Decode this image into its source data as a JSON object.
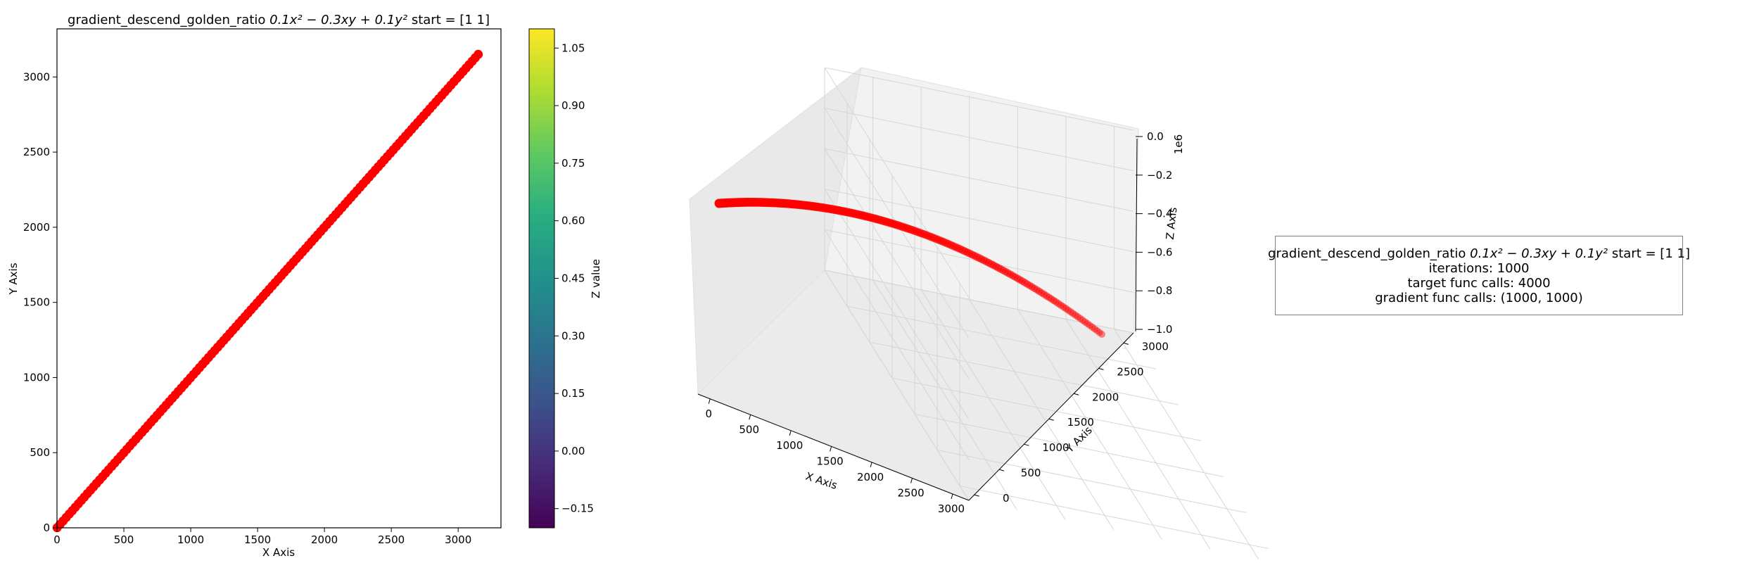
{
  "chart_data": [
    {
      "type": "scatter",
      "title": "gradient_descend_golden_ratio 0.1x² − 0.3xy + 0.1y² start = [1 1]",
      "title_parts": {
        "name": "gradient_descend_golden_ratio",
        "formula": "0.1x² − 0.3xy + 0.1y²",
        "start": "start = [1 1]"
      },
      "xlabel": "X Axis",
      "ylabel": "Y Axis",
      "xlim": [
        0,
        3320
      ],
      "ylim": [
        0,
        3320
      ],
      "xticks": [
        0,
        500,
        1000,
        1500,
        2000,
        2500,
        3000
      ],
      "yticks": [
        0,
        500,
        1000,
        1500,
        2000,
        2500,
        3000
      ],
      "series": [
        {
          "color": "#ff0000",
          "x_start": 1,
          "x_end": 3150,
          "y_start": 1,
          "y_end": 3150,
          "points": 1000
        }
      ],
      "colorbar": {
        "label": "Z value",
        "range": [
          -0.2,
          1.1
        ],
        "ticks": [
          "−0.15",
          "0.00",
          "0.15",
          "0.30",
          "0.45",
          "0.60",
          "0.75",
          "0.90",
          "1.05"
        ],
        "tick_values": [
          -0.15,
          0,
          0.15,
          0.3,
          0.45,
          0.6,
          0.75,
          0.9,
          1.05
        ],
        "colormap": "viridis"
      }
    },
    {
      "type": "scatter3d",
      "xlabel": "X Axis",
      "ylabel": "Y Axis",
      "zlabel": "Z Axis",
      "z_scale_label": "1e6",
      "xlim": [
        0,
        3200
      ],
      "ylim": [
        0,
        3200
      ],
      "zlim": [
        -1.0,
        0.0
      ],
      "xticks": [
        0,
        500,
        1000,
        1500,
        2000,
        2500,
        3000
      ],
      "yticks": [
        0,
        500,
        1000,
        1500,
        2000,
        2500,
        3000
      ],
      "zticks": [
        "−1.0",
        "−0.8",
        "−0.6",
        "−0.4",
        "−0.2",
        "0.0"
      ],
      "ztick_values": [
        -1.0,
        -0.8,
        -0.6,
        -0.4,
        -0.2,
        0.0
      ],
      "series": [
        {
          "color": "#ff0000",
          "description": "points on x=y from 1 to 3150, z = 0.1x² − 0.3xy + 0.1y² (≈ −0.1x²)",
          "x_end": 3150,
          "z_end": -0.99
        }
      ]
    }
  ],
  "info": {
    "title_prefix": "gradient_descend_golden_ratio",
    "formula": "0.1x² − 0.3xy + 0.1y²",
    "start": "start = [1 1]",
    "iterations": "iterations: 1000",
    "target_calls": "target func calls: 4000",
    "gradient_calls": "gradient func calls: (1000, 1000)"
  }
}
